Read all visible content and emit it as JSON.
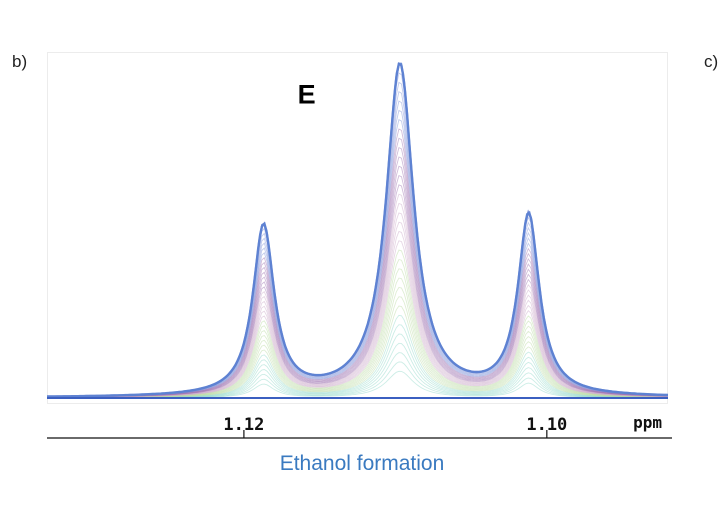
{
  "panel_labels": {
    "left": "b)",
    "right": "c)"
  },
  "caption": "Ethanol formation",
  "colors": {
    "caption": "#3a7ac0",
    "outer_trace": "#5a7fd0",
    "trace_hues": [
      "#7b8fd8",
      "#9b6fb0",
      "#c9a6c8",
      "#b7d9a0",
      "#8fd6c8"
    ]
  },
  "chart_data": {
    "type": "line",
    "title": "",
    "xlabel": "ppm",
    "ylabel": "",
    "x_reversed": true,
    "xlim": [
      1.133,
      1.092
    ],
    "ylim": [
      0,
      1.0
    ],
    "x_ticks": [
      1.12,
      1.1
    ],
    "x_tick_labels": [
      "1.12",
      "1.10"
    ],
    "grid": false,
    "annotations": [
      {
        "text": "E",
        "x": 1.115,
        "y": 0.88
      }
    ],
    "peaks": [
      {
        "x": 1.1187,
        "height": 0.49
      },
      {
        "x": 1.1097,
        "height": 0.96
      },
      {
        "x": 1.1012,
        "height": 0.52
      }
    ],
    "series": [
      {
        "values_note": "",
        "x": [
          1.133,
          1.128,
          1.124,
          1.121,
          1.1195,
          1.1187,
          1.118,
          1.1165,
          1.1145,
          1.1125,
          1.111,
          1.1097,
          1.1085,
          1.107,
          1.105,
          1.103,
          1.102,
          1.1012,
          1.1005,
          1.099,
          1.097,
          1.094,
          1.092
        ],
        "y": [
          0.0,
          0.02,
          0.06,
          0.17,
          0.36,
          0.49,
          0.38,
          0.2,
          0.19,
          0.3,
          0.7,
          0.96,
          0.7,
          0.3,
          0.19,
          0.22,
          0.38,
          0.52,
          0.4,
          0.16,
          0.06,
          0.02,
          0.0
        ]
      }
    ]
  }
}
